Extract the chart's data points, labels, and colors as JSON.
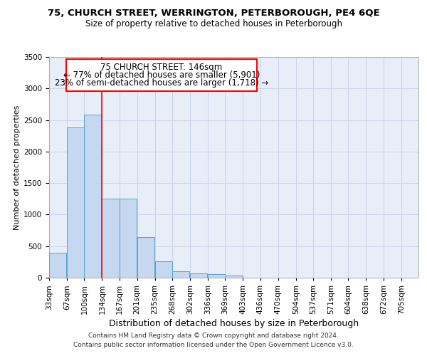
{
  "title_line1": "75, CHURCH STREET, WERRINGTON, PETERBOROUGH, PE4 6QE",
  "title_line2": "Size of property relative to detached houses in Peterborough",
  "xlabel": "Distribution of detached houses by size in Peterborough",
  "ylabel": "Number of detached properties",
  "categories": [
    "33sqm",
    "67sqm",
    "100sqm",
    "134sqm",
    "167sqm",
    "201sqm",
    "235sqm",
    "268sqm",
    "302sqm",
    "336sqm",
    "369sqm",
    "403sqm",
    "436sqm",
    "470sqm",
    "504sqm",
    "537sqm",
    "571sqm",
    "604sqm",
    "638sqm",
    "672sqm",
    "705sqm"
  ],
  "bar_left_edges": [
    33,
    67,
    100,
    134,
    167,
    201,
    235,
    268,
    302,
    336,
    369,
    403,
    436,
    470,
    504,
    537,
    571,
    604,
    638,
    672
  ],
  "bar_values": [
    390,
    2380,
    2580,
    1250,
    1250,
    645,
    255,
    100,
    65,
    55,
    35,
    0,
    0,
    0,
    0,
    0,
    0,
    0,
    0,
    0
  ],
  "bin_width": 33,
  "bar_color": "#c5d8f0",
  "bar_edge_color": "#5a9fd4",
  "red_line_x": 134,
  "annotation_text_line1": "75 CHURCH STREET: 146sqm",
  "annotation_text_line2": "← 77% of detached houses are smaller (5,901)",
  "annotation_text_line3": "23% of semi-detached houses are larger (1,718) →",
  "ylim": [
    0,
    3500
  ],
  "yticks": [
    0,
    500,
    1000,
    1500,
    2000,
    2500,
    3000,
    3500
  ],
  "tick_positions": [
    33,
    67,
    100,
    134,
    167,
    201,
    235,
    268,
    302,
    336,
    369,
    403,
    436,
    470,
    504,
    537,
    571,
    604,
    638,
    672,
    705
  ],
  "xlim": [
    33,
    738
  ],
  "grid_color": "#c8d4e8",
  "background_color": "#e8eef8",
  "footer_line1": "Contains HM Land Registry data © Crown copyright and database right 2024.",
  "footer_line2": "Contains public sector information licensed under the Open Government Licence v3.0.",
  "title_fontsize": 9.5,
  "subtitle_fontsize": 8.5,
  "ylabel_fontsize": 8,
  "xlabel_fontsize": 9,
  "tick_fontsize": 7.5,
  "footer_fontsize": 6.5,
  "annot_fontsize": 8.5
}
